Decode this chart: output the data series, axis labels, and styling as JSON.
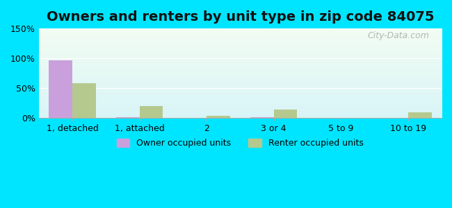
{
  "title": "Owners and renters by unit type in zip code 84075",
  "categories": [
    "1, detached",
    "1, attached",
    "2",
    "3 or 4",
    "5 to 9",
    "10 to 19"
  ],
  "owner_values": [
    97,
    2,
    0.5,
    1,
    0.2,
    0.3
  ],
  "renter_values": [
    58,
    20,
    4,
    14,
    0.3,
    9
  ],
  "owner_color": "#c9a0dc",
  "renter_color": "#b5c98e",
  "outer_bg": "#00e5ff",
  "ylim": [
    0,
    150
  ],
  "yticks": [
    0,
    50,
    100,
    150
  ],
  "ytick_labels": [
    "0%",
    "50%",
    "100%",
    "150%"
  ],
  "bar_width": 0.35,
  "legend_owner": "Owner occupied units",
  "legend_renter": "Renter occupied units",
  "title_fontsize": 14,
  "watermark": "City-Data.com"
}
